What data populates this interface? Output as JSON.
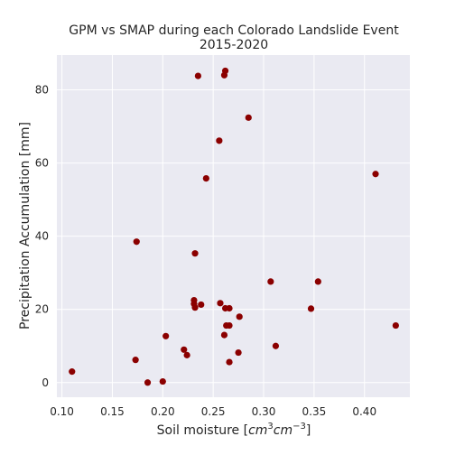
{
  "chart_data": {
    "type": "scatter",
    "title_line1": "GPM vs SMAP during each Colorado Landslide Event",
    "title_line2": "2015-2020",
    "xlabel_prefix": "Soil moisture [",
    "xlabel_unit1": "cm",
    "xlabel_exp1": "3",
    "xlabel_unit2": "cm",
    "xlabel_exp2": "−3",
    "xlabel_suffix": "]",
    "ylabel": "Precipitation Accumulation [mm]",
    "xlim": [
      0.095,
      0.445
    ],
    "ylim": [
      -4,
      89.5
    ],
    "xticks": [
      0.1,
      0.15,
      0.2,
      0.25,
      0.3,
      0.35,
      0.4
    ],
    "xtick_labels": [
      "0.10",
      "0.15",
      "0.20",
      "0.25",
      "0.30",
      "0.35",
      "0.40"
    ],
    "yticks": [
      0,
      20,
      40,
      60,
      80
    ],
    "ytick_labels": [
      "0",
      "20",
      "40",
      "60",
      "80"
    ],
    "grid": true,
    "marker_color": "#8b0000",
    "background_color": "#eaeaf2",
    "points": [
      {
        "x": 0.11,
        "y": 3.0
      },
      {
        "x": 0.173,
        "y": 6.2
      },
      {
        "x": 0.174,
        "y": 38.5
      },
      {
        "x": 0.185,
        "y": 0.0
      },
      {
        "x": 0.2,
        "y": 0.3
      },
      {
        "x": 0.203,
        "y": 12.7
      },
      {
        "x": 0.221,
        "y": 9.0
      },
      {
        "x": 0.224,
        "y": 7.5
      },
      {
        "x": 0.231,
        "y": 21.5
      },
      {
        "x": 0.231,
        "y": 22.5
      },
      {
        "x": 0.232,
        "y": 35.3
      },
      {
        "x": 0.232,
        "y": 20.5
      },
      {
        "x": 0.235,
        "y": 83.8
      },
      {
        "x": 0.238,
        "y": 21.3
      },
      {
        "x": 0.243,
        "y": 55.8
      },
      {
        "x": 0.256,
        "y": 66.1
      },
      {
        "x": 0.257,
        "y": 21.7
      },
      {
        "x": 0.261,
        "y": 84.0
      },
      {
        "x": 0.261,
        "y": 13.0
      },
      {
        "x": 0.262,
        "y": 85.2
      },
      {
        "x": 0.262,
        "y": 20.3
      },
      {
        "x": 0.263,
        "y": 15.6
      },
      {
        "x": 0.266,
        "y": 20.3
      },
      {
        "x": 0.266,
        "y": 15.6
      },
      {
        "x": 0.266,
        "y": 5.6
      },
      {
        "x": 0.275,
        "y": 8.2
      },
      {
        "x": 0.276,
        "y": 18.0
      },
      {
        "x": 0.285,
        "y": 72.4
      },
      {
        "x": 0.307,
        "y": 27.6
      },
      {
        "x": 0.312,
        "y": 10.0
      },
      {
        "x": 0.347,
        "y": 20.2
      },
      {
        "x": 0.354,
        "y": 27.6
      },
      {
        "x": 0.411,
        "y": 57.0
      },
      {
        "x": 0.431,
        "y": 15.6
      }
    ]
  }
}
